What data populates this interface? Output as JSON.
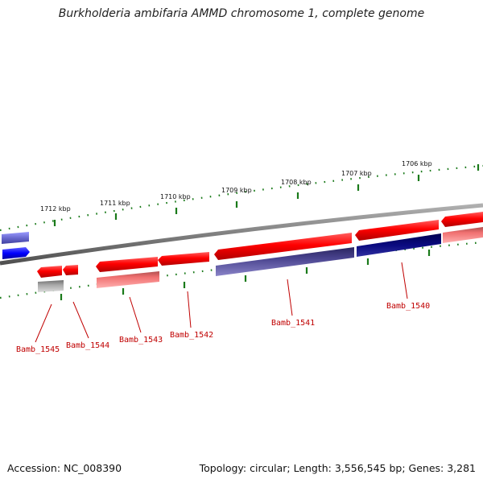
{
  "title": "Burkholderia ambifaria AMMD chromosome 1, complete genome",
  "accession": "Accession: NC_008390",
  "topology": "Topology: circular; Length: 3,556,545 bp; Genes: 3,281",
  "scale_labels": [
    "1712 kbp",
    "1711 kbp",
    "1710 kbp",
    "1709 kbp",
    "1708 kbp",
    "1707 kbp",
    "1706 kbp"
  ],
  "gene_labels": [
    "Bamb_1545",
    "Bamb_1544",
    "Bamb_1543",
    "Bamb_1542",
    "Bamb_1541",
    "Bamb_1540"
  ],
  "colors": {
    "backbone": "#808080",
    "tick": "#1a7a1a",
    "gene_forward": "#ff0000",
    "gene_light": "#f08080",
    "cds_purple": "#4b4590",
    "cds_navy": "#0a0a80",
    "cds_grey": "#a8a8a8",
    "cds_blue": "#0000ff",
    "cds_lavender": "#6a6ad0",
    "label": "#c00000"
  }
}
